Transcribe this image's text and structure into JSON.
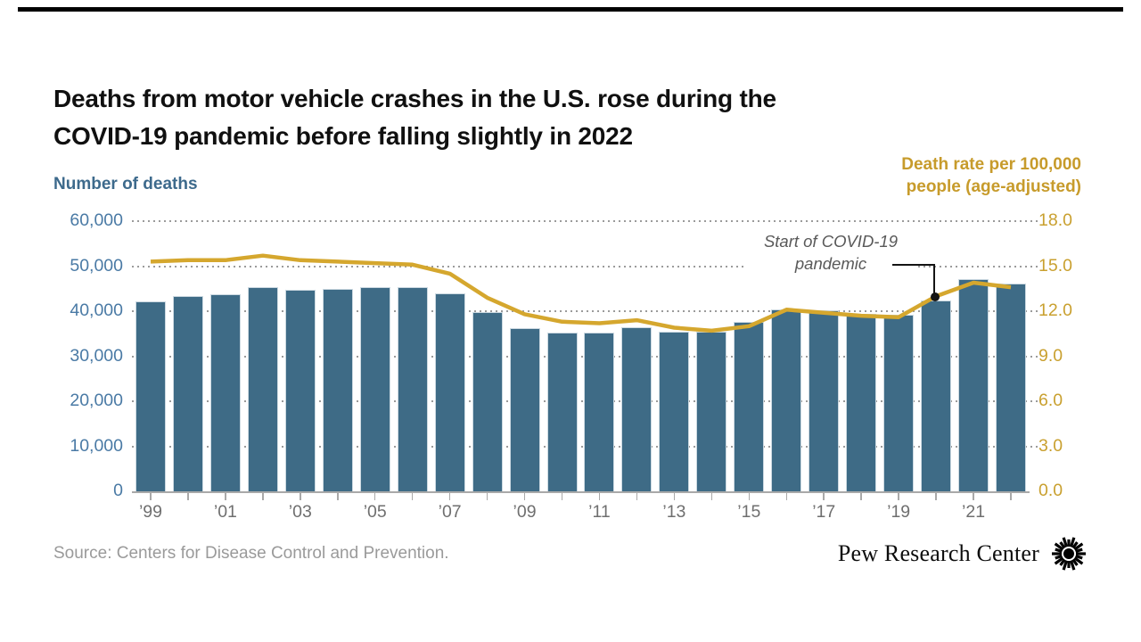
{
  "header": {
    "title_line1": "Deaths from motor vehicle crashes in the U.S. rose during the",
    "title_line2": "COVID-19 pandemic before falling slightly in 2022"
  },
  "chart_data": {
    "type": "bar",
    "subtype": "bar-plus-line-dual-axis",
    "years": [
      1999,
      2000,
      2001,
      2002,
      2003,
      2004,
      2005,
      2006,
      2007,
      2008,
      2009,
      2010,
      2011,
      2012,
      2013,
      2014,
      2015,
      2016,
      2017,
      2018,
      2019,
      2020,
      2021,
      2022
    ],
    "x_tick_labels": [
      "’99",
      "’01",
      "’03",
      "’05",
      "’07",
      "’09",
      "’11",
      "’13",
      "’15",
      "’17",
      "’19",
      "’21"
    ],
    "series": [
      {
        "name": "Number of deaths",
        "type": "bar",
        "axis": "left",
        "values": [
          42200,
          43400,
          43800,
          45400,
          44800,
          44900,
          45400,
          45300,
          44000,
          39800,
          36200,
          35300,
          35300,
          36400,
          35400,
          35400,
          37700,
          40300,
          40100,
          39500,
          39200,
          42400,
          47100,
          46200
        ]
      },
      {
        "name": "Death rate per 100,000 people (age-adjusted)",
        "type": "line",
        "axis": "right",
        "values": [
          15.3,
          15.4,
          15.4,
          15.7,
          15.4,
          15.3,
          15.2,
          15.1,
          14.5,
          12.9,
          11.8,
          11.3,
          11.2,
          11.4,
          10.9,
          10.7,
          11.0,
          12.1,
          11.9,
          11.7,
          11.6,
          13.0,
          13.9,
          13.6
        ]
      }
    ],
    "left_axis": {
      "title": "Number of deaths",
      "tick_labels": [
        "60,000",
        "50,000",
        "40,000",
        "30,000",
        "20,000",
        "10,000",
        "0"
      ],
      "tick_values": [
        60000,
        50000,
        40000,
        30000,
        20000,
        10000,
        0
      ],
      "range": [
        0,
        60000
      ]
    },
    "right_axis": {
      "title_line1": "Death rate per 100,000",
      "title_line2": "people (age-adjusted)",
      "tick_labels": [
        "18.0",
        "15.0",
        "12.0",
        "9.0",
        "6.0",
        "3.0",
        "0.0"
      ],
      "tick_values": [
        18,
        15,
        12,
        9,
        6,
        3,
        0
      ],
      "range": [
        0,
        18
      ]
    },
    "annotation": {
      "line1": "Start of COVID-19",
      "line2": "pandemic",
      "target_year": 2020
    },
    "grid": "dotted-horizontal",
    "legend_position": "none"
  },
  "footer": {
    "source": "Source: Centers for Disease Control and Prevention.",
    "brand": "Pew Research Center"
  },
  "colors": {
    "bar": "#3e6b86",
    "bar_stroke": "#ccd9e1",
    "line": "#d5a72e",
    "left_label": "#4a7aa5",
    "left_title": "#3d6a8c",
    "right_label": "#c9a02f",
    "right_title": "#c79b2b",
    "x_label": "#6f6f6f",
    "grid": "#9b9b9b",
    "annotation": "#595959",
    "source": "#9a9a9a",
    "top_rule": "#000000"
  }
}
